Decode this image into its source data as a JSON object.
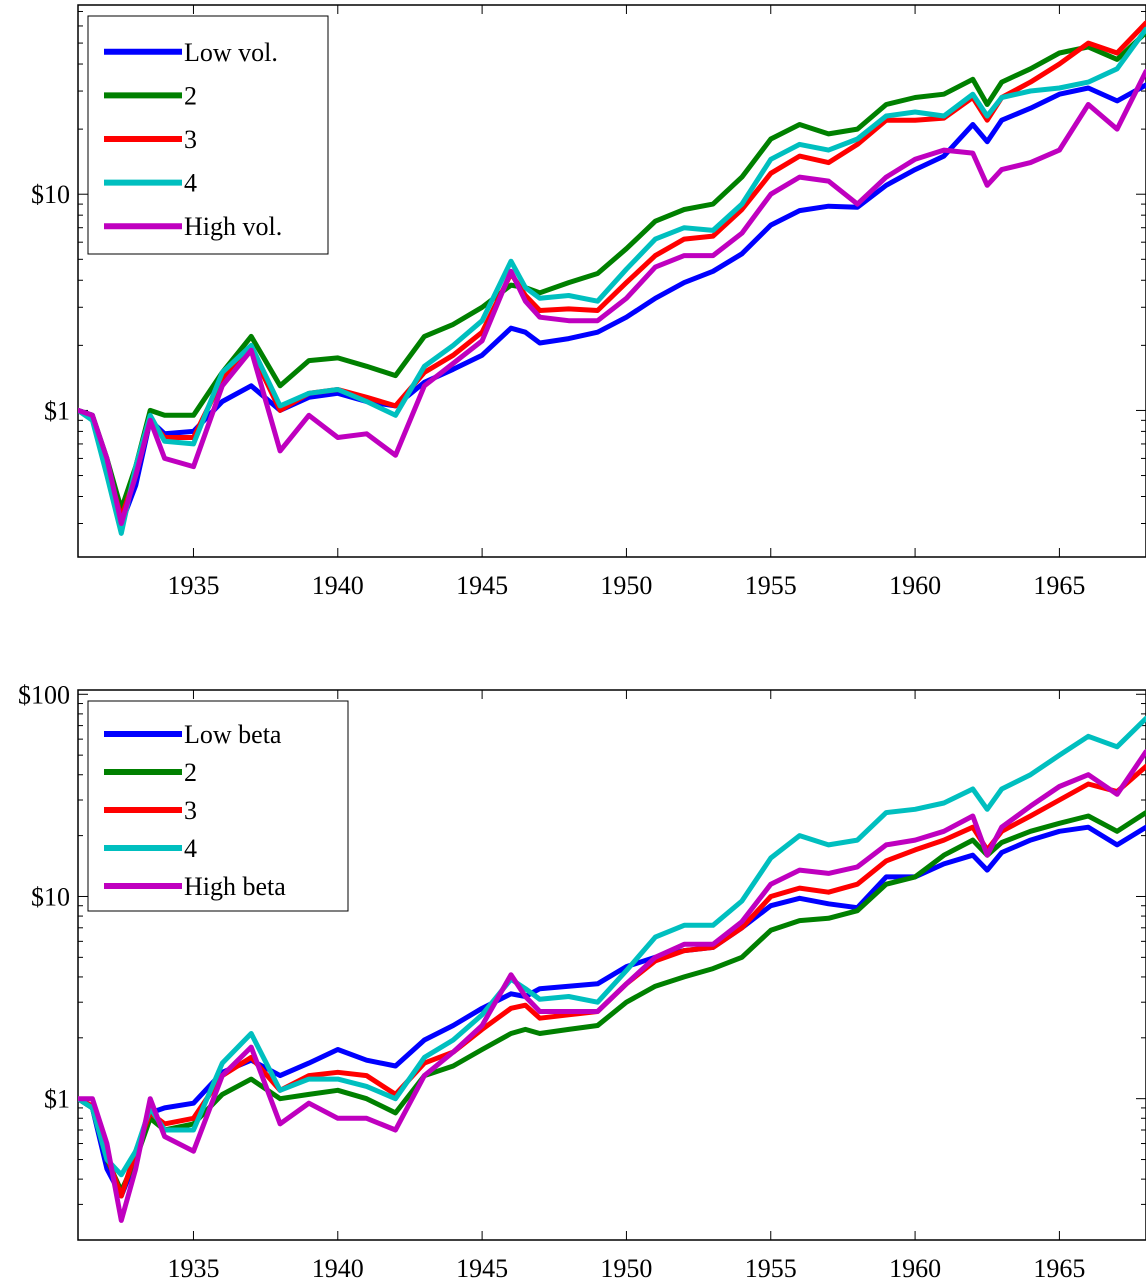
{
  "colors": {
    "blue": "#0000ff",
    "green": "#008000",
    "red": "#ff0000",
    "cyan": "#00bfbf",
    "magenta": "#bf00bf"
  },
  "chart_data": [
    {
      "type": "line",
      "log_y": true,
      "xlim": [
        1931,
        1968
      ],
      "ylim": [
        0.21,
        75
      ],
      "xticks": [
        1935,
        1940,
        1945,
        1950,
        1955,
        1960,
        1965
      ],
      "xtick_labels": [
        "1935",
        "1940",
        "1945",
        "1950",
        "1955",
        "1960",
        "1965"
      ],
      "yticks": [
        1,
        10
      ],
      "ytick_labels": [
        "$1",
        "$10"
      ],
      "legend_position": "top-left",
      "grid": false,
      "series": [
        {
          "name": "Low vol.",
          "color": "#0000ff",
          "x": [
            1931,
            1931.5,
            1932,
            1932.5,
            1933,
            1933.5,
            1934,
            1935,
            1936,
            1937,
            1938,
            1939,
            1940,
            1941,
            1942,
            1943,
            1944,
            1945,
            1946,
            1946.5,
            1947,
            1948,
            1949,
            1950,
            1951,
            1952,
            1953,
            1954,
            1955,
            1956,
            1957,
            1958,
            1959,
            1960,
            1961,
            1962,
            1962.5,
            1963,
            1964,
            1965,
            1966,
            1967,
            1968
          ],
          "y": [
            1.0,
            0.95,
            0.55,
            0.3,
            0.45,
            0.9,
            0.78,
            0.8,
            1.1,
            1.3,
            1.0,
            1.15,
            1.2,
            1.1,
            1.05,
            1.35,
            1.55,
            1.8,
            2.4,
            2.3,
            2.05,
            2.15,
            2.3,
            2.7,
            3.3,
            3.9,
            4.4,
            5.3,
            7.2,
            8.4,
            8.8,
            8.7,
            11.0,
            13.0,
            15.0,
            21.0,
            17.5,
            22.0,
            25.0,
            29.0,
            31.0,
            27.0,
            32.0
          ]
        },
        {
          "name": "2",
          "color": "#008000",
          "x": [
            1931,
            1931.5,
            1932,
            1932.5,
            1933,
            1933.5,
            1934,
            1935,
            1936,
            1937,
            1938,
            1939,
            1940,
            1941,
            1942,
            1943,
            1944,
            1945,
            1946,
            1946.5,
            1947,
            1948,
            1949,
            1950,
            1951,
            1952,
            1953,
            1954,
            1955,
            1956,
            1957,
            1958,
            1959,
            1960,
            1961,
            1962,
            1962.5,
            1963,
            1964,
            1965,
            1966,
            1967,
            1968
          ],
          "y": [
            1.0,
            0.95,
            0.6,
            0.35,
            0.55,
            1.0,
            0.95,
            0.95,
            1.5,
            2.2,
            1.3,
            1.7,
            1.75,
            1.6,
            1.45,
            2.2,
            2.5,
            3.0,
            3.8,
            3.7,
            3.5,
            3.9,
            4.3,
            5.6,
            7.5,
            8.5,
            9.0,
            12.0,
            18.0,
            21.0,
            19.0,
            20.0,
            26.0,
            28.0,
            29.0,
            34.0,
            26.0,
            33.0,
            38.0,
            45.0,
            48.0,
            42.0,
            56.0
          ]
        },
        {
          "name": "3",
          "color": "#ff0000",
          "x": [
            1931,
            1931.5,
            1932,
            1932.5,
            1933,
            1933.5,
            1934,
            1935,
            1936,
            1937,
            1938,
            1939,
            1940,
            1941,
            1942,
            1943,
            1944,
            1945,
            1946,
            1946.5,
            1947,
            1948,
            1949,
            1950,
            1951,
            1952,
            1953,
            1954,
            1955,
            1956,
            1957,
            1958,
            1959,
            1960,
            1961,
            1962,
            1962.5,
            1963,
            1964,
            1965,
            1966,
            1967,
            1968
          ],
          "y": [
            1.0,
            0.92,
            0.55,
            0.32,
            0.5,
            0.9,
            0.75,
            0.75,
            1.4,
            1.9,
            1.0,
            1.2,
            1.25,
            1.15,
            1.05,
            1.5,
            1.8,
            2.3,
            4.3,
            3.4,
            2.9,
            2.95,
            2.9,
            3.9,
            5.2,
            6.2,
            6.4,
            8.5,
            12.5,
            15.0,
            14.0,
            17.0,
            22.0,
            22.0,
            22.5,
            28.0,
            22.0,
            28.0,
            33.0,
            40.0,
            50.0,
            45.0,
            62.0
          ]
        },
        {
          "name": "4",
          "color": "#00bfbf",
          "x": [
            1931,
            1931.5,
            1932,
            1932.5,
            1933,
            1933.5,
            1934,
            1935,
            1936,
            1937,
            1938,
            1939,
            1940,
            1941,
            1942,
            1943,
            1944,
            1945,
            1946,
            1946.5,
            1947,
            1948,
            1949,
            1950,
            1951,
            1952,
            1953,
            1954,
            1955,
            1956,
            1957,
            1958,
            1959,
            1960,
            1961,
            1962,
            1962.5,
            1963,
            1964,
            1965,
            1966,
            1967,
            1968
          ],
          "y": [
            1.0,
            0.9,
            0.5,
            0.27,
            0.55,
            0.95,
            0.72,
            0.7,
            1.5,
            2.0,
            1.05,
            1.2,
            1.25,
            1.1,
            0.95,
            1.6,
            2.0,
            2.6,
            4.9,
            3.7,
            3.3,
            3.4,
            3.2,
            4.5,
            6.2,
            7.0,
            6.8,
            9.0,
            14.5,
            17.0,
            16.0,
            18.0,
            23.0,
            24.0,
            23.0,
            29.0,
            23.0,
            28.0,
            30.0,
            31.0,
            33.0,
            38.0,
            58.0
          ]
        },
        {
          "name": "High vol.",
          "color": "#bf00bf",
          "x": [
            1931,
            1931.5,
            1932,
            1932.5,
            1933,
            1933.5,
            1934,
            1935,
            1936,
            1937,
            1938,
            1939,
            1940,
            1941,
            1942,
            1943,
            1944,
            1945,
            1946,
            1946.5,
            1947,
            1948,
            1949,
            1950,
            1951,
            1952,
            1953,
            1954,
            1955,
            1956,
            1957,
            1958,
            1959,
            1960,
            1961,
            1962,
            1962.5,
            1963,
            1964,
            1965,
            1966,
            1967,
            1968
          ],
          "y": [
            1.0,
            0.95,
            0.6,
            0.3,
            0.5,
            0.9,
            0.6,
            0.55,
            1.3,
            1.9,
            0.65,
            0.95,
            0.75,
            0.78,
            0.62,
            1.3,
            1.65,
            2.1,
            4.4,
            3.2,
            2.7,
            2.6,
            2.6,
            3.3,
            4.6,
            5.2,
            5.2,
            6.6,
            10.0,
            12.0,
            11.5,
            9.0,
            12.0,
            14.5,
            16.0,
            15.5,
            11.0,
            13.0,
            14.0,
            16.0,
            26.0,
            20.0,
            37.0
          ]
        }
      ]
    },
    {
      "type": "line",
      "log_y": true,
      "xlim": [
        1931,
        1968
      ],
      "ylim": [
        0.2,
        105
      ],
      "xticks": [
        1935,
        1940,
        1945,
        1950,
        1955,
        1960,
        1965
      ],
      "xtick_labels": [
        "1935",
        "1940",
        "1945",
        "1950",
        "1955",
        "1960",
        "1965"
      ],
      "yticks": [
        1,
        10,
        100
      ],
      "ytick_labels": [
        "$1",
        "$10",
        "$100"
      ],
      "legend_position": "top-left",
      "grid": false,
      "series": [
        {
          "name": "Low beta",
          "color": "#0000ff",
          "x": [
            1931,
            1931.5,
            1932,
            1932.5,
            1933,
            1933.5,
            1934,
            1935,
            1936,
            1937,
            1938,
            1939,
            1940,
            1941,
            1942,
            1943,
            1944,
            1945,
            1946,
            1946.5,
            1947,
            1948,
            1949,
            1950,
            1951,
            1952,
            1953,
            1954,
            1955,
            1956,
            1957,
            1958,
            1959,
            1960,
            1961,
            1962,
            1962.5,
            1963,
            1964,
            1965,
            1966,
            1967,
            1968
          ],
          "y": [
            1.0,
            0.9,
            0.45,
            0.33,
            0.5,
            0.85,
            0.9,
            0.95,
            1.35,
            1.55,
            1.3,
            1.5,
            1.75,
            1.55,
            1.45,
            1.95,
            2.3,
            2.8,
            3.3,
            3.2,
            3.5,
            3.6,
            3.7,
            4.5,
            5.0,
            5.4,
            5.6,
            7.0,
            9.0,
            9.8,
            9.2,
            8.8,
            12.5,
            12.5,
            14.5,
            16.0,
            13.5,
            16.5,
            19.0,
            21.0,
            22.0,
            18.0,
            22.0
          ]
        },
        {
          "name": "2",
          "color": "#008000",
          "x": [
            1931,
            1931.5,
            1932,
            1932.5,
            1933,
            1933.5,
            1934,
            1935,
            1936,
            1937,
            1938,
            1939,
            1940,
            1941,
            1942,
            1943,
            1944,
            1945,
            1946,
            1946.5,
            1947,
            1948,
            1949,
            1950,
            1951,
            1952,
            1953,
            1954,
            1955,
            1956,
            1957,
            1958,
            1959,
            1960,
            1961,
            1962,
            1962.5,
            1963,
            1964,
            1965,
            1966,
            1967,
            1968
          ],
          "y": [
            1.0,
            0.9,
            0.5,
            0.35,
            0.5,
            0.8,
            0.7,
            0.75,
            1.05,
            1.25,
            1.0,
            1.05,
            1.1,
            1.0,
            0.85,
            1.3,
            1.45,
            1.75,
            2.1,
            2.2,
            2.1,
            2.2,
            2.3,
            3.0,
            3.6,
            4.0,
            4.4,
            5.0,
            6.8,
            7.6,
            7.8,
            8.5,
            11.5,
            12.5,
            16.0,
            19.0,
            16.0,
            18.5,
            21.0,
            23.0,
            25.0,
            21.0,
            26.0
          ]
        },
        {
          "name": "3",
          "color": "#ff0000",
          "x": [
            1931,
            1931.5,
            1932,
            1932.5,
            1933,
            1933.5,
            1934,
            1935,
            1936,
            1937,
            1938,
            1939,
            1940,
            1941,
            1942,
            1943,
            1944,
            1945,
            1946,
            1946.5,
            1947,
            1948,
            1949,
            1950,
            1951,
            1952,
            1953,
            1954,
            1955,
            1956,
            1957,
            1958,
            1959,
            1960,
            1961,
            1962,
            1962.5,
            1963,
            1964,
            1965,
            1966,
            1967,
            1968
          ],
          "y": [
            1.0,
            0.92,
            0.52,
            0.33,
            0.55,
            0.85,
            0.75,
            0.8,
            1.3,
            1.6,
            1.1,
            1.3,
            1.35,
            1.3,
            1.05,
            1.5,
            1.7,
            2.2,
            2.8,
            2.9,
            2.5,
            2.6,
            2.7,
            3.7,
            4.8,
            5.4,
            5.6,
            7.0,
            10.0,
            11.0,
            10.5,
            11.5,
            15.0,
            17.0,
            19.0,
            22.0,
            17.0,
            21.0,
            25.0,
            30.0,
            36.0,
            33.0,
            44.0
          ]
        },
        {
          "name": "4",
          "color": "#00bfbf",
          "x": [
            1931,
            1931.5,
            1932,
            1932.5,
            1933,
            1933.5,
            1934,
            1935,
            1936,
            1937,
            1938,
            1939,
            1940,
            1941,
            1942,
            1943,
            1944,
            1945,
            1946,
            1946.5,
            1947,
            1948,
            1949,
            1950,
            1951,
            1952,
            1953,
            1954,
            1955,
            1956,
            1957,
            1958,
            1959,
            1960,
            1961,
            1962,
            1962.5,
            1963,
            1964,
            1965,
            1966,
            1967,
            1968
          ],
          "y": [
            1.0,
            0.9,
            0.5,
            0.42,
            0.55,
            0.9,
            0.7,
            0.7,
            1.5,
            2.1,
            1.1,
            1.25,
            1.25,
            1.15,
            1.0,
            1.6,
            1.95,
            2.6,
            3.9,
            3.5,
            3.1,
            3.2,
            3.0,
            4.3,
            6.3,
            7.2,
            7.2,
            9.5,
            15.5,
            20.0,
            18.0,
            19.0,
            26.0,
            27.0,
            29.0,
            34.0,
            27.0,
            34.0,
            40.0,
            50.0,
            62.0,
            55.0,
            76.0
          ]
        },
        {
          "name": "High beta",
          "color": "#bf00bf",
          "x": [
            1931,
            1931.5,
            1932,
            1932.5,
            1933,
            1933.5,
            1934,
            1935,
            1936,
            1937,
            1938,
            1939,
            1940,
            1941,
            1942,
            1943,
            1944,
            1945,
            1946,
            1946.5,
            1947,
            1948,
            1949,
            1950,
            1951,
            1952,
            1953,
            1954,
            1955,
            1956,
            1957,
            1958,
            1959,
            1960,
            1961,
            1962,
            1962.5,
            1963,
            1964,
            1965,
            1966,
            1967,
            1968
          ],
          "y": [
            1.0,
            1.0,
            0.6,
            0.25,
            0.45,
            1.0,
            0.65,
            0.55,
            1.3,
            1.8,
            0.75,
            0.95,
            0.8,
            0.8,
            0.7,
            1.3,
            1.7,
            2.3,
            4.1,
            3.2,
            2.7,
            2.7,
            2.7,
            3.7,
            5.0,
            5.8,
            5.8,
            7.5,
            11.5,
            13.5,
            13.0,
            14.0,
            18.0,
            19.0,
            21.0,
            25.0,
            16.0,
            22.0,
            28.0,
            35.0,
            40.0,
            32.0,
            52.0
          ]
        }
      ]
    }
  ]
}
